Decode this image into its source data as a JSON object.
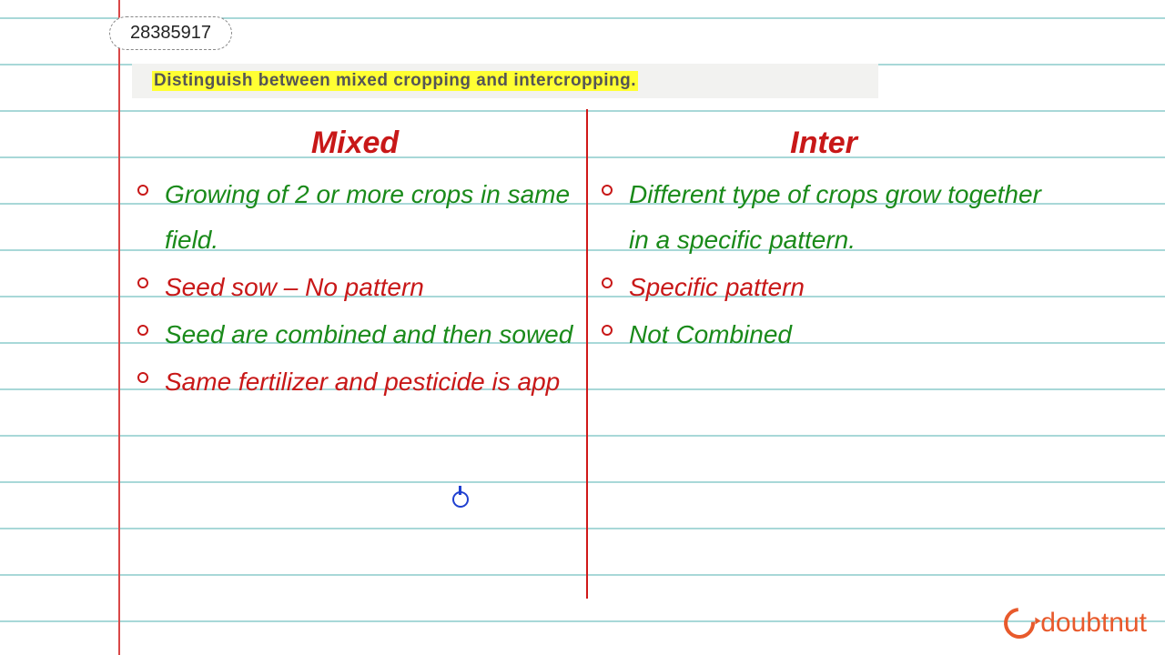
{
  "id_badge": "28385917",
  "question": "Distinguish between mixed cropping and intercropping.",
  "left": {
    "header": "Mixed",
    "p1": "Growing of 2 or more crops in   same field.",
    "p2": "Seed sow – No pattern",
    "p3": "Seed are combined and then sowed",
    "p4": "Same fertilizer and pesticide is app"
  },
  "right": {
    "header": "Inter",
    "p1": "Different type of crops grow together in a specific pattern.",
    "p2": "Specific  pattern",
    "p3": "Not  Combined"
  },
  "logo": "doubtnut",
  "colors": {
    "rule_line": "#a8d8d8",
    "margin_line": "#d94848",
    "highlight": "#ffff33",
    "green_ink": "#1a8a1a",
    "red_ink": "#c81818",
    "cursor": "#2040d0",
    "logo": "#e85a2c"
  }
}
